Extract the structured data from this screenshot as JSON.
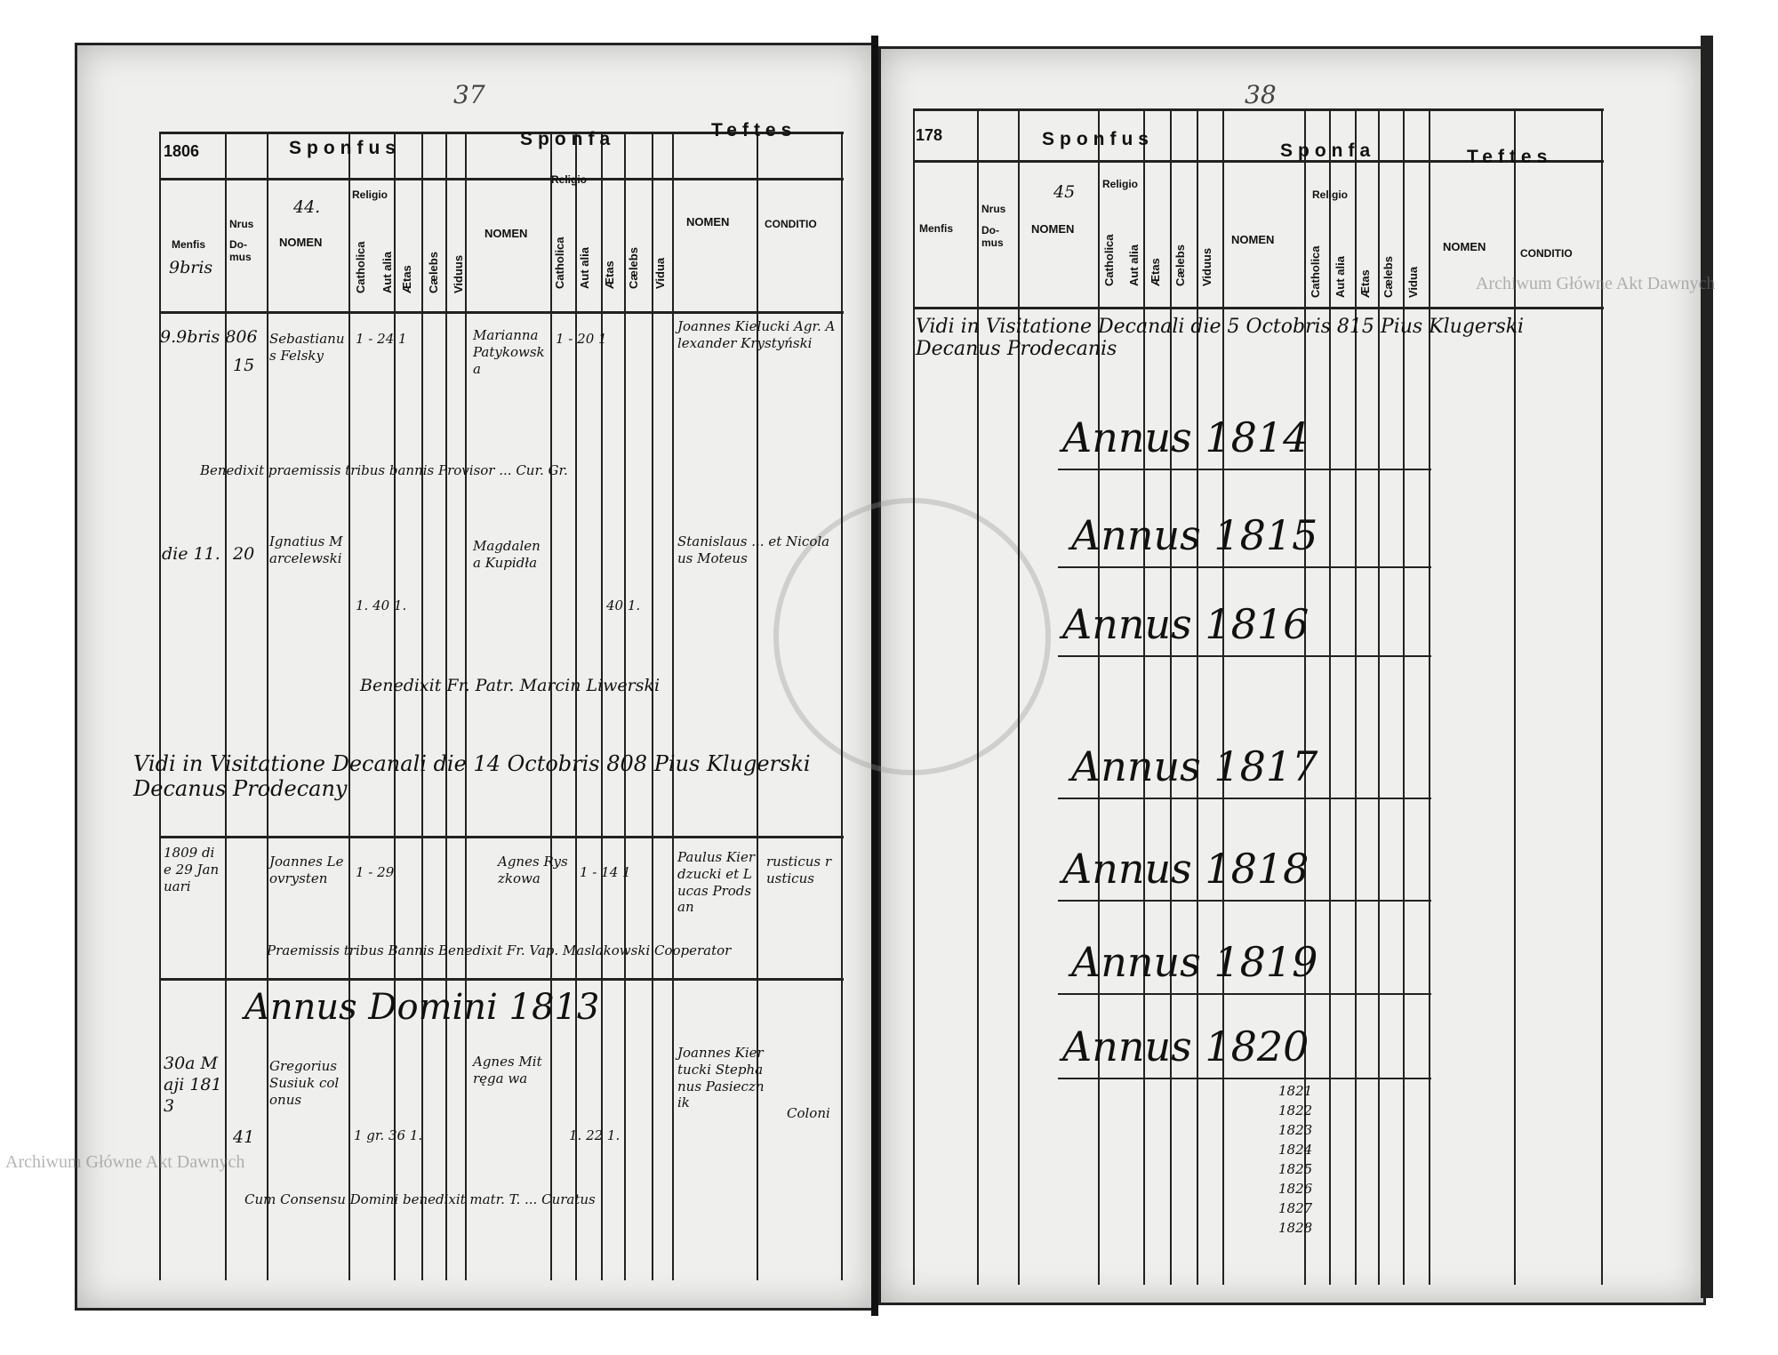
{
  "page_numbers": {
    "left": "37",
    "right": "38"
  },
  "watermark": "Archiwum Główne Akt Dawnych",
  "headers": {
    "left_year": "1806",
    "right_year": "178",
    "sponsus": "Sponfus",
    "sponsa": "Sponfa",
    "testes": "Teftes",
    "mensis": "Menfis",
    "nrus": "Nrus",
    "domus": "Do-mus",
    "nomen": "NOMEN",
    "religio": "Religio",
    "catholica": "Catholica",
    "aut_alia": "Aut alia",
    "aetas": "Ætas",
    "caelebs": "Cælebs",
    "viduus": "Viduus",
    "vidua": "Vidua",
    "conditio": "CONDITIO",
    "left_entry_no": "44.",
    "right_entry_no": "45",
    "left_month": "9bris"
  },
  "left_entries": [
    {
      "date": "9.9bris 806",
      "domus": "15",
      "sponsus": "Sebastianus Felsky",
      "sponsus_vals": "1 - 24 1",
      "sponsa": "Marianna Patykowska",
      "sponsa_vals": "1 - 20 1",
      "testes": "Joannes Kielucki Agr. Alexander Krystyński"
    },
    {
      "note": "Benedixit praemissis tribus bannis Provisor ... Cur. Gr."
    },
    {
      "date": "die 11.",
      "domus": "20",
      "sponsus": "Ignatius Marcelewski",
      "sponsus_vals": "1. 40 1.",
      "sponsa": "Magdalena Kupidła",
      "sponsa_vals": "40 1.",
      "testes": "Stanislaus ... et Nicolaus Moteus"
    },
    {
      "note": "Benedixit Fr. Patr. Marcin Liwerski"
    },
    {
      "note": "Vidi in Visitatione Decanali die 14 Octobris 808 Pius Klugerski Decanus Prodecany"
    },
    {
      "date": "1809 die 29 Januari",
      "sponsus": "Joannes Leovrysten",
      "sponsus_vals": "1 - 29",
      "sponsa": "Agnes Ryszkowa",
      "sponsa_vals": "1 - 14 1",
      "testes": "Paulus Kierdzucki et Lucas Prodsan",
      "conditio": "rusticus rusticus"
    },
    {
      "note": "Praemissis tribus Bannis Benedixit Fr. Vap. Maslakowski Cooperator"
    },
    {
      "heading": "Annus Domini 1813"
    },
    {
      "date": "30a Maji 1813",
      "domus": "41",
      "sponsus": "Gregorius Susiuk colonus",
      "sponsus_vals": "1 gr. 36 1.",
      "sponsa": "Agnes Mitręga wa",
      "sponsa_vals": "1. 22 1.",
      "testes": "Joannes Kiertucki Stephanus Pasiecznik",
      "conditio": "Coloni"
    },
    {
      "note": "Cum Consensu Domini benedixit matr. T. ... Curatus"
    }
  ],
  "right_entries": {
    "visitation": "Vidi in Visitatione Decanali die 5 Octobris 815 Pius Klugerski Decanus Prodecanis",
    "annus": [
      "Annus 1814",
      "Annus 1815",
      "Annus 1816",
      "Annus 1817",
      "Annus 1818",
      "Annus 1819",
      "Annus 1820"
    ],
    "years_list": [
      "1821",
      "1822",
      "1823",
      "1824",
      "1825",
      "1826",
      "1827",
      "1828"
    ]
  }
}
